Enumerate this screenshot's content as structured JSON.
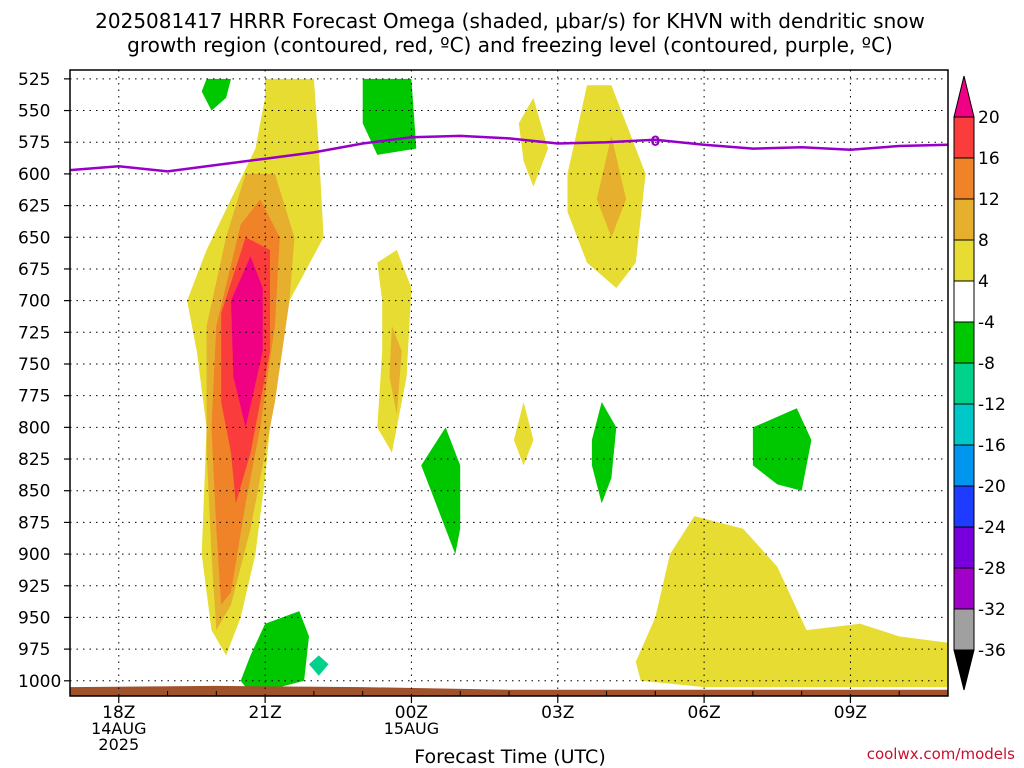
{
  "title_line1": "2025081417 HRRR Forecast Omega (shaded, μbar/s) for KHVN with dendritic snow",
  "title_line2": "growth region (contoured, red, ºC) and freezing level (contoured, purple, ºC)",
  "credit": "coolwx.com/models",
  "colors": {
    "c4_8": "#e6dc32",
    "c8_12": "#e6af2d",
    "c12_16": "#f08228",
    "c16_20": "#fa3c3c",
    "c20p": "#f00082",
    "cm4_m8": "#00c800",
    "cm8_m12": "#00d28c",
    "cm12_m16": "#00c8c8",
    "cm16_m20": "#0096f0",
    "cm20_m24": "#1e3cff",
    "cm24_m28": "#7800dc",
    "cm28_m32": "#a000c8",
    "cm32_m36": "#a0a0a0",
    "cm36": "#000000",
    "white": "#ffffff",
    "freezing": "#9600c8",
    "terrain": "#a0522d"
  },
  "chart_data": {
    "type": "heatmap",
    "title": "2025081417 HRRR Forecast Omega (shaded, μbar/s) for KHVN with dendritic snow growth region (contoured, red, ºC) and freezing level (contoured, purple, ºC)",
    "xlabel": "Forecast Time (UTC)",
    "ylabel": "",
    "x_ticks": [
      {
        "hour": 18,
        "lines": [
          "18Z",
          "14AUG",
          "2025"
        ]
      },
      {
        "hour": 21,
        "lines": [
          "21Z"
        ]
      },
      {
        "hour": 24,
        "lines": [
          "00Z",
          "15AUG"
        ]
      },
      {
        "hour": 27,
        "lines": [
          "03Z"
        ]
      },
      {
        "hour": 30,
        "lines": [
          "06Z"
        ]
      },
      {
        "hour": 33,
        "lines": [
          "09Z"
        ]
      }
    ],
    "xlim_hours": [
      17,
      35
    ],
    "pressure_levels": [
      525,
      550,
      575,
      600,
      625,
      650,
      675,
      700,
      725,
      750,
      775,
      800,
      825,
      850,
      875,
      900,
      925,
      950,
      975,
      1000
    ],
    "ylim": [
      518,
      1012
    ],
    "colorbar_labels": [
      "20",
      "16",
      "12",
      "8",
      "4",
      "-4",
      "-8",
      "-12",
      "-16",
      "-20",
      "-24",
      "-28",
      "-32",
      "-36"
    ],
    "freezing_level": {
      "label": "0",
      "label_hour": 29.0,
      "points": [
        [
          17.0,
          597
        ],
        [
          18.0,
          594
        ],
        [
          19.0,
          598
        ],
        [
          20.0,
          593
        ],
        [
          21.0,
          588
        ],
        [
          22.0,
          583
        ],
        [
          23.0,
          576
        ],
        [
          24.0,
          571
        ],
        [
          25.0,
          570
        ],
        [
          26.0,
          572
        ],
        [
          27.0,
          576
        ],
        [
          28.0,
          575
        ],
        [
          29.0,
          573
        ],
        [
          30.0,
          577
        ],
        [
          31.0,
          580
        ],
        [
          32.0,
          579
        ],
        [
          33.0,
          581
        ],
        [
          34.0,
          578
        ],
        [
          35.0,
          577
        ]
      ]
    },
    "omega_regions": [
      {
        "name": "main-updraft-4-8",
        "color": "c4_8",
        "points": [
          [
            19.6,
            740
          ],
          [
            19.4,
            700
          ],
          [
            19.8,
            660
          ],
          [
            20.3,
            620
          ],
          [
            20.8,
            580
          ],
          [
            21.0,
            540
          ],
          [
            21.0,
            525
          ],
          [
            22.0,
            525
          ],
          [
            22.1,
            580
          ],
          [
            22.2,
            650
          ],
          [
            21.5,
            700
          ],
          [
            21.2,
            760
          ],
          [
            21.0,
            840
          ],
          [
            20.8,
            900
          ],
          [
            20.5,
            950
          ],
          [
            20.2,
            980
          ],
          [
            19.9,
            960
          ],
          [
            19.7,
            900
          ],
          [
            19.8,
            800
          ]
        ]
      },
      {
        "name": "main-updraft-8-12",
        "color": "c8_12",
        "points": [
          [
            19.8,
            720
          ],
          [
            20.2,
            650
          ],
          [
            20.6,
            600
          ],
          [
            21.2,
            600
          ],
          [
            21.6,
            650
          ],
          [
            21.5,
            700
          ],
          [
            21.2,
            780
          ],
          [
            20.7,
            880
          ],
          [
            20.3,
            940
          ],
          [
            20.0,
            960
          ],
          [
            19.9,
            900
          ],
          [
            19.8,
            820
          ]
        ]
      },
      {
        "name": "main-updraft-12-16",
        "color": "c12_16",
        "points": [
          [
            20.0,
            720
          ],
          [
            20.5,
            640
          ],
          [
            20.9,
            620
          ],
          [
            21.3,
            650
          ],
          [
            21.2,
            720
          ],
          [
            20.9,
            800
          ],
          [
            20.6,
            860
          ],
          [
            20.3,
            930
          ],
          [
            20.1,
            940
          ],
          [
            20.0,
            880
          ],
          [
            19.9,
            800
          ]
        ]
      },
      {
        "name": "main-updraft-16-20",
        "color": "c16_20",
        "points": [
          [
            20.1,
            710
          ],
          [
            20.6,
            650
          ],
          [
            21.1,
            660
          ],
          [
            21.1,
            740
          ],
          [
            20.7,
            820
          ],
          [
            20.4,
            860
          ],
          [
            20.3,
            820
          ],
          [
            20.1,
            780
          ]
        ]
      },
      {
        "name": "main-updraft-20plus",
        "color": "c20p",
        "points": [
          [
            20.3,
            700
          ],
          [
            20.7,
            665
          ],
          [
            20.95,
            690
          ],
          [
            20.95,
            740
          ],
          [
            20.6,
            800
          ],
          [
            20.35,
            760
          ]
        ]
      },
      {
        "name": "updraft-2-4-8",
        "color": "c4_8",
        "points": [
          [
            23.4,
            700
          ],
          [
            23.3,
            670
          ],
          [
            23.7,
            660
          ],
          [
            24.0,
            690
          ],
          [
            23.9,
            760
          ],
          [
            23.6,
            820
          ],
          [
            23.3,
            800
          ],
          [
            23.4,
            740
          ]
        ]
      },
      {
        "name": "updraft-2-8-12",
        "color": "c8_12",
        "points": [
          [
            23.6,
            720
          ],
          [
            23.8,
            740
          ],
          [
            23.7,
            790
          ],
          [
            23.55,
            760
          ]
        ]
      },
      {
        "name": "updraft-3-4-8",
        "color": "c4_8",
        "points": [
          [
            26.2,
            560
          ],
          [
            26.5,
            540
          ],
          [
            26.8,
            580
          ],
          [
            26.5,
            610
          ],
          [
            26.3,
            590
          ]
        ]
      },
      {
        "name": "updraft-4-4-8",
        "color": "c4_8",
        "points": [
          [
            27.2,
            600
          ],
          [
            27.6,
            530
          ],
          [
            28.1,
            530
          ],
          [
            28.8,
            600
          ],
          [
            28.6,
            670
          ],
          [
            28.2,
            690
          ],
          [
            27.6,
            670
          ],
          [
            27.2,
            630
          ]
        ]
      },
      {
        "name": "updraft-4-8-12",
        "color": "c8_12",
        "points": [
          [
            27.8,
            620
          ],
          [
            28.1,
            570
          ],
          [
            28.4,
            620
          ],
          [
            28.1,
            650
          ]
        ]
      },
      {
        "name": "updraft-5-4-8",
        "color": "c4_8",
        "points": [
          [
            26.1,
            810
          ],
          [
            26.3,
            780
          ],
          [
            26.5,
            810
          ],
          [
            26.3,
            830
          ]
        ]
      },
      {
        "name": "low-level-4-8",
        "color": "c4_8",
        "points": [
          [
            28.6,
            985
          ],
          [
            29.0,
            950
          ],
          [
            29.3,
            900
          ],
          [
            29.8,
            870
          ],
          [
            30.8,
            880
          ],
          [
            31.5,
            910
          ],
          [
            32.1,
            960
          ],
          [
            33.2,
            955
          ],
          [
            34.0,
            965
          ],
          [
            35.0,
            970
          ],
          [
            35.0,
            1005
          ],
          [
            30.0,
            1005
          ],
          [
            28.7,
            1000
          ]
        ]
      },
      {
        "name": "downdraft-1",
        "color": "cm4_m8",
        "points": [
          [
            19.8,
            525
          ],
          [
            20.3,
            525
          ],
          [
            20.2,
            540
          ],
          [
            19.9,
            550
          ],
          [
            19.7,
            535
          ]
        ]
      },
      {
        "name": "downdraft-2",
        "color": "cm4_m8",
        "points": [
          [
            23.0,
            525
          ],
          [
            24.0,
            525
          ],
          [
            24.1,
            580
          ],
          [
            23.3,
            585
          ],
          [
            23.0,
            560
          ]
        ]
      },
      {
        "name": "downdraft-3",
        "color": "cm4_m8",
        "points": [
          [
            24.2,
            830
          ],
          [
            24.7,
            800
          ],
          [
            25.0,
            830
          ],
          [
            25.0,
            880
          ],
          [
            24.9,
            900
          ],
          [
            24.6,
            870
          ],
          [
            24.4,
            850
          ]
        ]
      },
      {
        "name": "downdraft-4",
        "color": "cm4_m8",
        "points": [
          [
            27.7,
            810
          ],
          [
            27.9,
            780
          ],
          [
            28.2,
            800
          ],
          [
            28.1,
            840
          ],
          [
            27.9,
            860
          ],
          [
            27.7,
            830
          ]
        ]
      },
      {
        "name": "downdraft-5",
        "color": "cm4_m8",
        "points": [
          [
            31.0,
            800
          ],
          [
            31.9,
            785
          ],
          [
            32.2,
            810
          ],
          [
            32.0,
            850
          ],
          [
            31.5,
            845
          ],
          [
            31.0,
            830
          ]
        ]
      },
      {
        "name": "downdraft-6",
        "color": "cm4_m8",
        "points": [
          [
            20.5,
            1000
          ],
          [
            20.7,
            980
          ],
          [
            21.0,
            955
          ],
          [
            21.7,
            945
          ],
          [
            21.9,
            965
          ],
          [
            21.8,
            1000
          ],
          [
            21.3,
            1005
          ],
          [
            20.6,
            1005
          ]
        ]
      },
      {
        "name": "downdraft-6-core",
        "color": "cm8_m12",
        "points": [
          [
            21.9,
            987
          ],
          [
            22.1,
            980
          ],
          [
            22.3,
            987
          ],
          [
            22.1,
            996
          ]
        ]
      }
    ],
    "terrain_top_pressure": [
      [
        17.0,
        1005
      ],
      [
        20.0,
        1004
      ],
      [
        23.0,
        1005
      ],
      [
        26.0,
        1007
      ],
      [
        29.0,
        1007
      ],
      [
        32.0,
        1007
      ],
      [
        35.0,
        1007
      ]
    ]
  }
}
